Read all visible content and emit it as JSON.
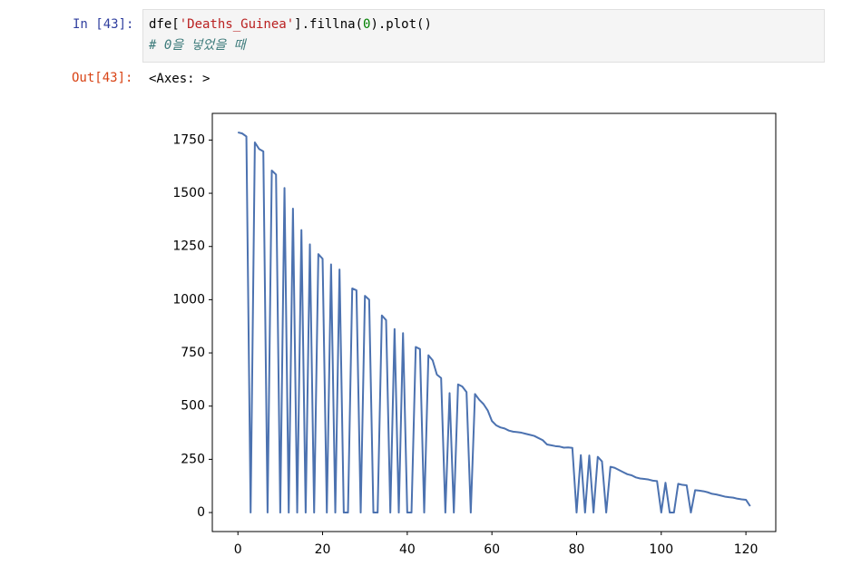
{
  "cell": {
    "in_prompt": "In [43]:",
    "code": [
      [
        "dfe[",
        "'Deaths_Guinea'",
        "].fillna(",
        "0",
        ").plot()"
      ],
      [
        "# 0을 넣었을 때"
      ]
    ],
    "out_prompt": "Out[43]:",
    "output_text": "<Axes: >"
  },
  "chart_data": {
    "type": "line",
    "color": "#4c72b0",
    "x": [
      0,
      1,
      2,
      3,
      4,
      5,
      6,
      7,
      8,
      9,
      10,
      11,
      12,
      13,
      14,
      15,
      16,
      17,
      18,
      19,
      20,
      21,
      22,
      23,
      24,
      25,
      26,
      27,
      28,
      29,
      30,
      31,
      32,
      33,
      34,
      35,
      36,
      37,
      38,
      39,
      40,
      41,
      42,
      43,
      44,
      45,
      46,
      47,
      48,
      49,
      50,
      51,
      52,
      53,
      54,
      55,
      56,
      57,
      58,
      59,
      60,
      61,
      62,
      63,
      64,
      65,
      66,
      67,
      68,
      69,
      70,
      71,
      72,
      73,
      74,
      75,
      76,
      77,
      78,
      79,
      80,
      81,
      82,
      83,
      84,
      85,
      86,
      87,
      88,
      89,
      90,
      91,
      92,
      93,
      94,
      95,
      96,
      97,
      98,
      99,
      100,
      101,
      102,
      103,
      104,
      105,
      106,
      107,
      108,
      109,
      110,
      111,
      112,
      113,
      114,
      115,
      116,
      117,
      118,
      119,
      120,
      121
    ],
    "values": [
      1786,
      1781,
      1767,
      0,
      1739,
      1708,
      1697,
      0,
      1607,
      1588,
      0,
      1525,
      0,
      1428,
      0,
      1327,
      0,
      1260,
      0,
      1214,
      1192,
      0,
      1166,
      0,
      1142,
      0,
      0,
      1053,
      1044,
      0,
      1018,
      1000,
      0,
      0,
      926,
      904,
      0,
      862,
      0,
      843,
      0,
      0,
      778,
      768,
      0,
      739,
      715,
      648,
      632,
      0,
      561,
      0,
      602,
      592,
      566,
      0,
      557,
      530,
      510,
      480,
      430,
      410,
      400,
      395,
      385,
      380,
      378,
      375,
      370,
      365,
      360,
      350,
      340,
      320,
      316,
      312,
      310,
      305,
      306,
      304,
      0,
      270,
      0,
      268,
      0,
      262,
      240,
      0,
      215,
      210,
      200,
      190,
      180,
      175,
      165,
      160,
      158,
      155,
      150,
      148,
      0,
      140,
      0,
      0,
      135,
      130,
      128,
      0,
      105,
      103,
      100,
      95,
      88,
      85,
      80,
      75,
      72,
      70,
      65,
      62,
      60,
      30
    ],
    "xlim": [
      -6.05,
      127.05
    ],
    "xticks": [
      0,
      20,
      40,
      60,
      80,
      100,
      120
    ],
    "ylim": [
      -89.3,
      1875.3
    ],
    "yticks": [
      0,
      250,
      500,
      750,
      1000,
      1250,
      1500,
      1750
    ]
  }
}
